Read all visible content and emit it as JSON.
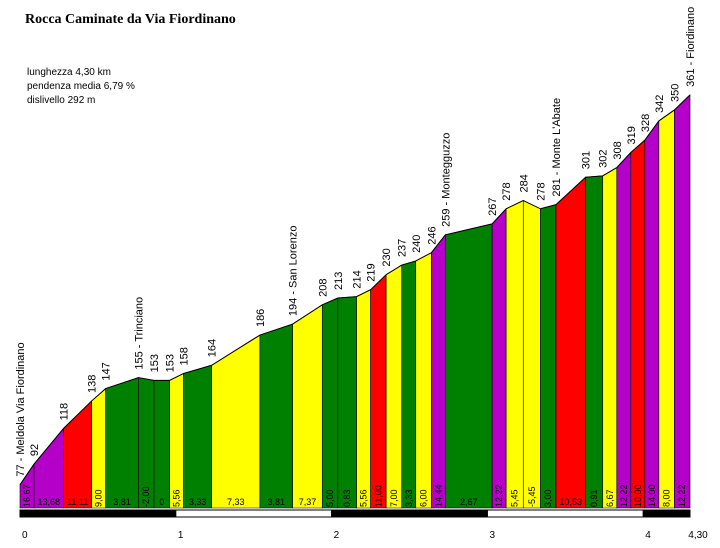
{
  "title": "Rocca Caminate da Via Fiordinano",
  "stats": {
    "length": "lunghezza 4,30 km",
    "avg_grade": "pendenza media 6,79 %",
    "climb": "dislivello 292 m"
  },
  "colors": {
    "purple": "#b400c8",
    "red": "#ff0000",
    "yellow": "#ffff00",
    "green": "#008000"
  },
  "chart_data": {
    "type": "area",
    "x_unit": "km",
    "y_unit": "m",
    "xlim": [
      0,
      4.3
    ],
    "ylim": [
      60,
      370
    ],
    "x_ticks": [
      {
        "value": 0,
        "label": "0"
      },
      {
        "value": 1,
        "label": "1"
      },
      {
        "value": 2,
        "label": "2"
      },
      {
        "value": 3,
        "label": "3"
      },
      {
        "value": 4,
        "label": "4"
      },
      {
        "value": 4.3,
        "label": "4,30"
      }
    ],
    "points": [
      {
        "x": 0.0,
        "elev": 77,
        "label": "77 - Meldola Via Fiordinano"
      },
      {
        "x": 0.09,
        "elev": 92,
        "label": "92"
      },
      {
        "x": 0.28,
        "elev": 118,
        "label": "118"
      },
      {
        "x": 0.46,
        "elev": 138,
        "label": "138"
      },
      {
        "x": 0.55,
        "elev": 147,
        "label": "147"
      },
      {
        "x": 0.76,
        "elev": 155,
        "label": "155 - Trinciano"
      },
      {
        "x": 0.86,
        "elev": 153,
        "label": "153"
      },
      {
        "x": 0.96,
        "elev": 153,
        "label": "153"
      },
      {
        "x": 1.05,
        "elev": 158,
        "label": "158"
      },
      {
        "x": 1.23,
        "elev": 164,
        "label": "164"
      },
      {
        "x": 1.54,
        "elev": 186,
        "label": "186"
      },
      {
        "x": 1.75,
        "elev": 194,
        "label": "194 - San Lorenzo"
      },
      {
        "x": 1.94,
        "elev": 208,
        "label": "208"
      },
      {
        "x": 2.04,
        "elev": 213,
        "label": "213"
      },
      {
        "x": 2.16,
        "elev": 214,
        "label": "214"
      },
      {
        "x": 2.25,
        "elev": 219,
        "label": "219"
      },
      {
        "x": 2.35,
        "elev": 230,
        "label": "230"
      },
      {
        "x": 2.45,
        "elev": 237,
        "label": "237"
      },
      {
        "x": 2.54,
        "elev": 240,
        "label": "240"
      },
      {
        "x": 2.64,
        "elev": 246,
        "label": "246"
      },
      {
        "x": 2.73,
        "elev": 259,
        "label": "259 - Montegguzzo"
      },
      {
        "x": 3.03,
        "elev": 267,
        "label": "267"
      },
      {
        "x": 3.12,
        "elev": 278,
        "label": "278"
      },
      {
        "x": 3.23,
        "elev": 284,
        "label": "284"
      },
      {
        "x": 3.34,
        "elev": 278,
        "label": "278"
      },
      {
        "x": 3.44,
        "elev": 281,
        "label": "281 - Monte L'Abate"
      },
      {
        "x": 3.63,
        "elev": 301,
        "label": "301"
      },
      {
        "x": 3.74,
        "elev": 302,
        "label": "302"
      },
      {
        "x": 3.83,
        "elev": 308,
        "label": "308"
      },
      {
        "x": 3.92,
        "elev": 319,
        "label": "319"
      },
      {
        "x": 4.01,
        "elev": 328,
        "label": "328"
      },
      {
        "x": 4.1,
        "elev": 342,
        "label": "342"
      },
      {
        "x": 4.2,
        "elev": 350,
        "label": "350"
      },
      {
        "x": 4.3,
        "elev": 361,
        "label": "361 - Fiordinano"
      }
    ],
    "segments": [
      {
        "grade": "16,67",
        "color": "purple"
      },
      {
        "grade": "13,68",
        "color": "purple"
      },
      {
        "grade": "11,11",
        "color": "red"
      },
      {
        "grade": "9,00",
        "color": "yellow"
      },
      {
        "grade": "3,81",
        "color": "green"
      },
      {
        "grade": "-2,00",
        "color": "green"
      },
      {
        "grade": "0",
        "color": "green"
      },
      {
        "grade": "5,56",
        "color": "yellow"
      },
      {
        "grade": "3,33",
        "color": "green"
      },
      {
        "grade": "7,33",
        "color": "yellow"
      },
      {
        "grade": "3,81",
        "color": "green"
      },
      {
        "grade": "7,37",
        "color": "yellow"
      },
      {
        "grade": "5,00",
        "color": "green"
      },
      {
        "grade": "0,83",
        "color": "green"
      },
      {
        "grade": "5,56",
        "color": "yellow"
      },
      {
        "grade": "11,00",
        "color": "red"
      },
      {
        "grade": "7,00",
        "color": "yellow"
      },
      {
        "grade": "3,33",
        "color": "green"
      },
      {
        "grade": "6,00",
        "color": "yellow"
      },
      {
        "grade": "14,44",
        "color": "purple"
      },
      {
        "grade": "2,67",
        "color": "green"
      },
      {
        "grade": "12,22",
        "color": "purple"
      },
      {
        "grade": "5,45",
        "color": "yellow"
      },
      {
        "grade": "-5,45",
        "color": "yellow"
      },
      {
        "grade": "3,00",
        "color": "green"
      },
      {
        "grade": "10,53",
        "color": "red"
      },
      {
        "grade": "0,91",
        "color": "green"
      },
      {
        "grade": "6,67",
        "color": "yellow"
      },
      {
        "grade": "12,22",
        "color": "purple"
      },
      {
        "grade": "10,00",
        "color": "red"
      },
      {
        "grade": "14,00",
        "color": "purple"
      },
      {
        "grade": "8,00",
        "color": "yellow"
      },
      {
        "grade": "12,22",
        "color": "purple"
      }
    ]
  }
}
